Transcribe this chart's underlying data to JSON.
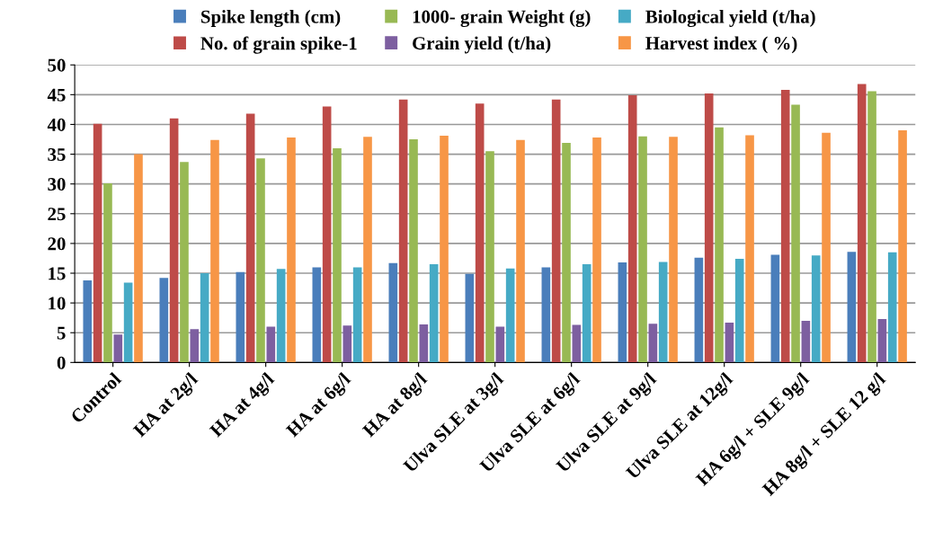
{
  "chart_data": {
    "type": "bar",
    "categories": [
      "Control",
      "HA at 2g/l",
      "HA at 4g/l",
      "HA at 6g/l",
      "HA at 8g/l",
      "Ulva SLE at 3g/l",
      "Ulva SLE at 6g/l",
      "Ulva SLE at 9g/l",
      "Ulva SLE at 12g/l",
      "HA 6g/l + SLE 9g/l",
      "HA 8g/l + SLE 12 g/l"
    ],
    "series": [
      {
        "name": "Spike length (cm)",
        "color": "#4a7ebb",
        "values": [
          13.8,
          14.2,
          15.2,
          16.0,
          16.7,
          14.9,
          16.0,
          16.8,
          17.6,
          18.1,
          18.6
        ]
      },
      {
        "name": "No. of grain spike-1",
        "color": "#be4b48",
        "values": [
          40.1,
          41.0,
          41.8,
          43.0,
          44.2,
          43.5,
          44.2,
          44.9,
          45.2,
          45.8,
          46.8
        ]
      },
      {
        "name": "1000- grain Weight (g)",
        "color": "#98b954",
        "values": [
          30.1,
          33.7,
          34.3,
          36.0,
          37.5,
          35.5,
          36.9,
          38.0,
          39.5,
          43.3,
          45.6
        ]
      },
      {
        "name": "Grain yield (t/ha)",
        "color": "#7d5fa0",
        "values": [
          4.7,
          5.6,
          6.0,
          6.2,
          6.4,
          6.0,
          6.3,
          6.5,
          6.7,
          7.0,
          7.3
        ]
      },
      {
        "name": "Biological yield (t/ha)",
        "color": "#46aac5",
        "values": [
          13.4,
          15.0,
          15.7,
          16.0,
          16.5,
          15.8,
          16.5,
          16.9,
          17.4,
          18.0,
          18.5
        ]
      },
      {
        "name": "Harvest index ( %)",
        "color": "#f79646",
        "values": [
          35.0,
          37.4,
          37.8,
          37.9,
          38.1,
          37.4,
          37.8,
          37.9,
          38.2,
          38.6,
          39.0
        ]
      }
    ],
    "ylim": [
      0,
      50
    ],
    "yticks": [
      0,
      5,
      10,
      15,
      20,
      25,
      30,
      35,
      40,
      45,
      50
    ],
    "grid": "y",
    "legend": "top"
  }
}
